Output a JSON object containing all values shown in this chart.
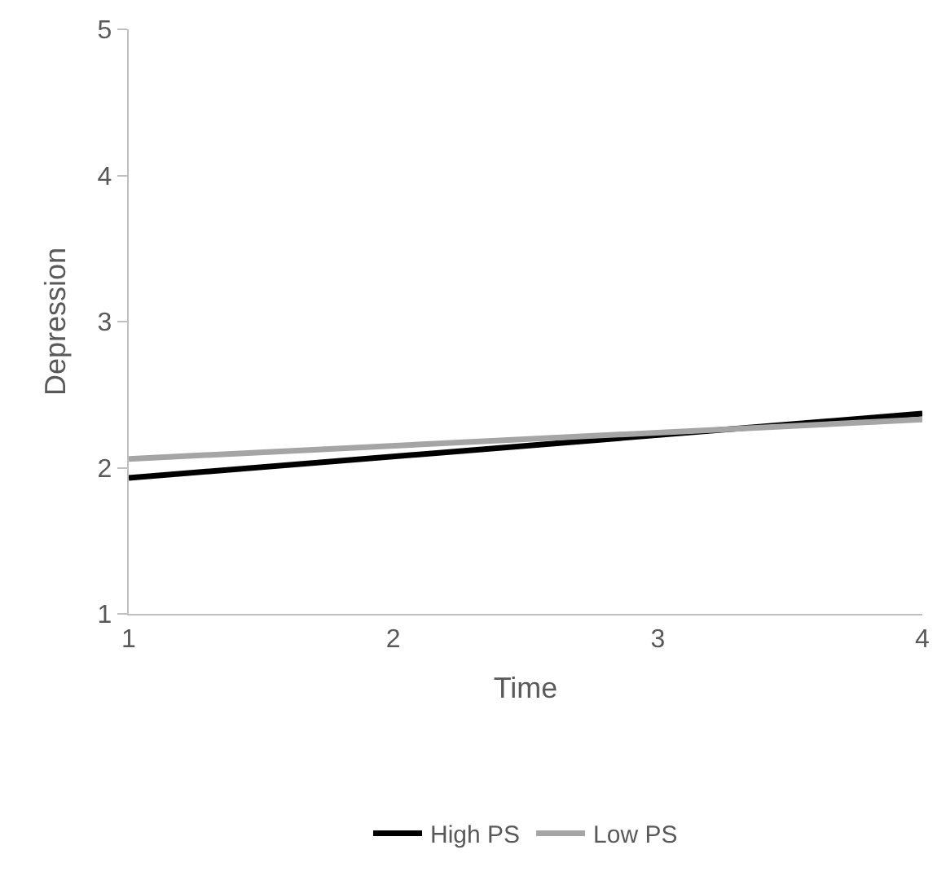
{
  "chart_data": {
    "type": "line",
    "xlabel": "Time",
    "ylabel": "Depression",
    "x": [
      1,
      4
    ],
    "series": [
      {
        "name": "High PS",
        "color": "#000000",
        "values": [
          1.93,
          2.37
        ]
      },
      {
        "name": "Low PS",
        "color": "#a5a5a5",
        "values": [
          2.06,
          2.33
        ]
      }
    ],
    "xlim": [
      1,
      4
    ],
    "xticks": [
      1,
      2,
      3,
      4
    ],
    "ylim": [
      1,
      5
    ],
    "yticks": [
      1,
      2,
      3,
      4,
      5
    ],
    "legend": "bottom",
    "marker": "none",
    "line_style": "solid"
  }
}
